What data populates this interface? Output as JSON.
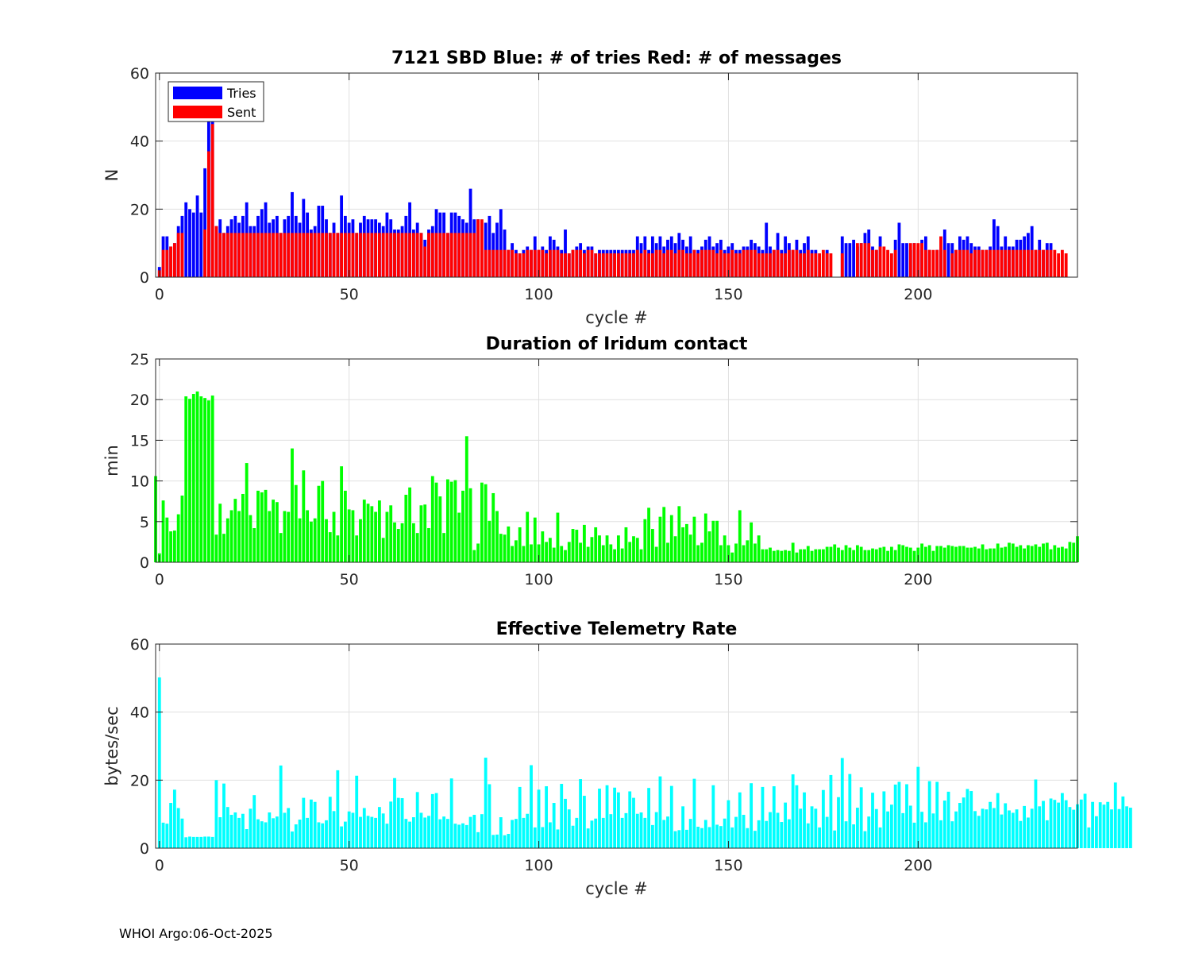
{
  "footer": {
    "text": "WHOI Argo:06-Oct-2025"
  },
  "chart_data": [
    {
      "type": "bar",
      "title": "7121 SBD  Blue: # of tries   Red: # of messages",
      "xlabel": "cycle #",
      "ylabel": "N",
      "xlim": [
        -1,
        242
      ],
      "ylim": [
        0,
        60
      ],
      "xticks": [
        0,
        50,
        100,
        150,
        200
      ],
      "yticks": [
        0,
        20,
        40,
        60
      ],
      "grid": true,
      "legend": {
        "position": "top-left",
        "entries": [
          {
            "label": "Tries",
            "color": "#0000ff"
          },
          {
            "label": "Sent",
            "color": "#ff0000"
          }
        ]
      },
      "x_start": 0,
      "series": [
        {
          "name": "Tries",
          "color": "#0000ff",
          "values": [
            3,
            12,
            12,
            9,
            10,
            15,
            18,
            22,
            20,
            19,
            24,
            19,
            32,
            50,
            49,
            15,
            17,
            13,
            15,
            17,
            18,
            16,
            18,
            22,
            15,
            15,
            18,
            20,
            22,
            16,
            17,
            18,
            13,
            17,
            18,
            25,
            18,
            16,
            23,
            19,
            14,
            15,
            21,
            21,
            17,
            13,
            16,
            13,
            24,
            18,
            16,
            17,
            13,
            16,
            18,
            17,
            17,
            17,
            16,
            15,
            19,
            17,
            14,
            14,
            15,
            18,
            22,
            14,
            16,
            13,
            11,
            14,
            15,
            20,
            19,
            19,
            13,
            19,
            19,
            18,
            17,
            16,
            26,
            17,
            17,
            0,
            16,
            18,
            13,
            16,
            20,
            14,
            8,
            10,
            8,
            7,
            8,
            9,
            8,
            12,
            8,
            9,
            8,
            12,
            11,
            9,
            8,
            14,
            7,
            8,
            9,
            10,
            8,
            9,
            9,
            7,
            8,
            8,
            8,
            8,
            8,
            8,
            8,
            8,
            8,
            8,
            12,
            10,
            12,
            8,
            12,
            10,
            12,
            9,
            11,
            12,
            10,
            13,
            11,
            9,
            12,
            8,
            8,
            9,
            11,
            12,
            9,
            10,
            11,
            8,
            9,
            10,
            8,
            8,
            9,
            9,
            11,
            10,
            9,
            8,
            16,
            9,
            8,
            13,
            8,
            12,
            10,
            8,
            11,
            8,
            10,
            12,
            8,
            8,
            0,
            0,
            8,
            0,
            0,
            0,
            12,
            10,
            10,
            11,
            9,
            10,
            13,
            14,
            9,
            8,
            12,
            0,
            0,
            0,
            11,
            16,
            10,
            10,
            8,
            10,
            8,
            11,
            12,
            8,
            0,
            8,
            8,
            14,
            10,
            10,
            8,
            12,
            11,
            12,
            10,
            9,
            9,
            8,
            8,
            9,
            17,
            15,
            9,
            12,
            9,
            9,
            11,
            11,
            12,
            13,
            15,
            8,
            11,
            8,
            10,
            10
          ]
        },
        {
          "name": "Sent",
          "color": "#ff0000",
          "values": [
            2,
            8,
            8,
            9,
            10,
            13,
            13,
            0,
            0,
            0,
            0,
            0,
            14,
            37,
            45,
            15,
            13,
            13,
            13,
            13,
            13,
            13,
            13,
            13,
            13,
            13,
            13,
            13,
            13,
            13,
            13,
            13,
            13,
            13,
            13,
            13,
            13,
            13,
            13,
            13,
            13,
            13,
            13,
            13,
            13,
            13,
            13,
            13,
            13,
            13,
            13,
            13,
            13,
            13,
            13,
            13,
            13,
            13,
            13,
            13,
            13,
            13,
            13,
            13,
            13,
            13,
            13,
            13,
            13,
            13,
            9,
            13,
            13,
            13,
            13,
            13,
            13,
            13,
            13,
            13,
            13,
            13,
            13,
            13,
            17,
            17,
            8,
            8,
            8,
            8,
            8,
            8,
            8,
            8,
            7,
            7,
            7,
            8,
            8,
            8,
            8,
            8,
            7,
            8,
            8,
            8,
            7,
            7,
            7,
            8,
            8,
            8,
            7,
            8,
            8,
            7,
            7,
            7,
            7,
            7,
            7,
            7,
            7,
            7,
            7,
            7,
            8,
            7,
            8,
            7,
            7,
            8,
            8,
            7,
            8,
            8,
            7,
            8,
            8,
            7,
            7,
            8,
            7,
            8,
            8,
            8,
            8,
            7,
            8,
            7,
            7,
            8,
            7,
            7,
            8,
            8,
            8,
            8,
            7,
            7,
            7,
            7,
            8,
            8,
            7,
            7,
            8,
            8,
            8,
            7,
            7,
            8,
            7,
            7,
            7,
            8,
            7,
            7,
            0,
            0,
            7,
            0,
            0,
            0,
            10,
            10,
            10,
            10,
            8,
            8,
            9,
            9,
            8,
            7,
            8,
            0,
            0,
            0,
            10,
            10,
            10,
            10,
            8,
            8,
            8,
            8,
            12,
            8,
            0,
            7,
            8,
            8,
            8,
            8,
            7,
            8,
            8,
            8,
            8,
            8,
            8,
            8,
            8,
            8,
            8,
            8,
            8,
            8,
            8,
            8,
            8,
            8,
            8,
            8,
            8,
            8,
            8,
            7,
            8,
            7
          ]
        }
      ]
    },
    {
      "type": "bar",
      "title": "Duration of Iridum contact",
      "xlabel": "",
      "ylabel": "min",
      "xlim": [
        -1,
        242
      ],
      "ylim": [
        0,
        25
      ],
      "xticks": [
        0,
        50,
        100,
        150,
        200
      ],
      "yticks": [
        0,
        5,
        10,
        15,
        20,
        25
      ],
      "grid": true,
      "x_start": -1,
      "series": [
        {
          "name": "Duration",
          "color": "#00ff00",
          "values": [
            10.6,
            1.1,
            7.6,
            5.5,
            3.8,
            3.9,
            5.9,
            8.2,
            20.4,
            20.1,
            20.7,
            21.0,
            20.4,
            20.2,
            19.9,
            20.5,
            3.4,
            7.2,
            3.5,
            5.4,
            6.4,
            7.8,
            6.3,
            8.4,
            12.2,
            5.8,
            4.2,
            8.8,
            8.6,
            8.9,
            6.3,
            7.7,
            7.4,
            3.6,
            6.3,
            6.2,
            14.0,
            9.5,
            5.4,
            11.3,
            6.4,
            5.0,
            5.4,
            9.4,
            10.0,
            5.3,
            3.7,
            6.2,
            3.3,
            11.8,
            8.8,
            6.5,
            6.4,
            3.3,
            5.3,
            7.7,
            7.2,
            6.9,
            6.2,
            7.6,
            3.0,
            6.2,
            7.0,
            4.9,
            4.1,
            4.8,
            8.3,
            9.2,
            4.8,
            3.6,
            7.0,
            7.1,
            4.2,
            10.6,
            9.8,
            8.1,
            3.6,
            10.2,
            9.9,
            10.1,
            6.1,
            8.8,
            15.5,
            9.1,
            1.5,
            2.3,
            9.8,
            9.6,
            5.1,
            8.5,
            6.3,
            3.5,
            3.4,
            4.4,
            2.0,
            2.7,
            4.3,
            2.0,
            6.2,
            2.2,
            5.5,
            2.2,
            3.8,
            2.5,
            3.0,
            1.8,
            6.1,
            2.0,
            1.5,
            2.5,
            4.1,
            4.0,
            2.4,
            4.6,
            1.9,
            3.1,
            4.3,
            3.3,
            2.1,
            3.3,
            2.2,
            1.6,
            3.3,
            1.7,
            4.3,
            2.5,
            3.2,
            3.0,
            1.6,
            5.3,
            6.7,
            4.1,
            1.9,
            5.6,
            6.8,
            2.4,
            5.8,
            3.2,
            6.9,
            4.3,
            4.7,
            3.4,
            5.6,
            2.1,
            2.4,
            6.0,
            3.8,
            5.1,
            5.1,
            2.1,
            3.3,
            2.1,
            1.2,
            2.3,
            6.4,
            2.1,
            2.7,
            4.9,
            2.3,
            3.3,
            1.6,
            1.6,
            1.8,
            1.4,
            1.5,
            1.4,
            1.5,
            1.4,
            2.4,
            1.2,
            1.6,
            1.6,
            2.0,
            1.4,
            1.6,
            1.6,
            1.6,
            1.9,
            1.9,
            2.2,
            1.8,
            1.5,
            2.1,
            1.8,
            1.5,
            2.1,
            1.9,
            1.5,
            1.5,
            1.7,
            1.6,
            1.8,
            1.9,
            1.4,
            1.9,
            1.5,
            2.2,
            2.1,
            1.9,
            1.8,
            1.4,
            1.8,
            2.3,
            1.9,
            2.1,
            1.4,
            2.0,
            2.0,
            1.8,
            2.1,
            2.0,
            1.9,
            2.0,
            2.0,
            1.8,
            1.8,
            1.9,
            1.7,
            2.2,
            1.6,
            1.7,
            1.7,
            2.3,
            1.8,
            1.9,
            2.4,
            2.3,
            1.9,
            2.1,
            1.7,
            2.1,
            2.0,
            2.2,
            1.9,
            2.3,
            2.4,
            1.6,
            2.1,
            1.8,
            1.9,
            1.7,
            2.5,
            2.4,
            3.2
          ]
        }
      ]
    },
    {
      "type": "bar",
      "title": "Effective Telemetry Rate",
      "xlabel": "cycle #",
      "ylabel": "bytes/sec",
      "xlim": [
        -1,
        242
      ],
      "ylim": [
        0,
        60
      ],
      "xticks": [
        0,
        50,
        100,
        150,
        200
      ],
      "yticks": [
        0,
        20,
        40,
        60
      ],
      "grid": true,
      "x_start": 0,
      "series": [
        {
          "name": "Rate",
          "color": "#00ffff",
          "values": [
            50.2,
            7.5,
            7.2,
            13.3,
            17.2,
            11.8,
            8.7,
            3.2,
            3.4,
            3.3,
            3.3,
            3.3,
            3.4,
            3.4,
            3.3,
            20.0,
            9.1,
            19.0,
            12.1,
            9.8,
            10.5,
            8.9,
            10.1,
            5.6,
            11.6,
            15.6,
            8.5,
            7.9,
            7.6,
            10.5,
            8.8,
            9.3,
            24.3,
            10.4,
            11.8,
            4.9,
            7.0,
            8.4,
            14.8,
            8.9,
            14.3,
            13.6,
            7.6,
            7.3,
            8.2,
            15.1,
            10.9,
            22.9,
            6.4,
            7.8,
            10.8,
            10.4,
            21.3,
            9.2,
            11.8,
            9.5,
            9.2,
            8.9,
            12.1,
            10.2,
            7.2,
            13.7,
            20.6,
            14.8,
            14.7,
            8.6,
            7.8,
            9.1,
            16.5,
            10.4,
            9.0,
            9.5,
            15.9,
            16.2,
            8.5,
            9.3,
            8.6,
            20.5,
            7.2,
            6.9,
            7.3,
            6.8,
            9.2,
            9.8,
            4.7,
            10.0,
            26.6,
            18.8,
            3.9,
            4.0,
            9.1,
            3.8,
            4.2,
            8.3,
            8.6,
            18.0,
            8.9,
            10.1,
            24.4,
            6.1,
            17.2,
            6.2,
            18.2,
            7.6,
            13.3,
            5.5,
            18.9,
            14.5,
            11.4,
            6.6,
            8.9,
            20.3,
            15.4,
            5.8,
            8.1,
            8.7,
            17.5,
            8.9,
            18.5,
            10.0,
            17.8,
            16.4,
            8.9,
            10.3,
            16.7,
            14.8,
            10.1,
            10.5,
            8.9,
            17.7,
            6.8,
            10.6,
            21.1,
            8.3,
            9.3,
            18.3,
            5.0,
            5.3,
            12.3,
            5.4,
            8.6,
            20.4,
            6.3,
            5.9,
            8.3,
            6.2,
            18.5,
            6.9,
            6.5,
            8.7,
            14.1,
            6.1,
            9.2,
            16.4,
            9.8,
            5.9,
            19.1,
            5.1,
            8.2,
            18.0,
            8.0,
            10.6,
            18.2,
            10.4,
            7.7,
            13.4,
            8.5,
            21.7,
            18.5,
            11.6,
            16.4,
            7.3,
            12.3,
            11.6,
            6.1,
            17.1,
            9.2,
            21.5,
            5.2,
            15.0,
            26.5,
            7.9,
            21.8,
            7.0,
            11.9,
            17.9,
            5.0,
            9.3,
            16.3,
            11.5,
            6.1,
            16.7,
            10.8,
            12.8,
            18.7,
            19.5,
            10.3,
            18.8,
            12.5,
            7.5,
            23.9,
            10.7,
            7.6,
            19.7,
            10.2,
            19.5,
            8.2,
            14.0,
            16.6,
            7.9,
            10.8,
            13.3,
            14.9,
            17.4,
            16.8,
            10.9,
            9.5,
            11.6,
            11.4,
            13.6,
            11.8,
            16.2,
            9.9,
            13.2,
            11.1,
            10.4,
            11.4,
            8.0,
            12.4,
            9.0,
            11.6,
            20.2,
            12.3,
            13.9,
            8.2,
            14.6,
            14.2,
            13.4,
            16.2,
            14.1,
            12.1,
            11.3,
            12.9,
            14.3,
            16.0,
            6.1,
            13.6,
            9.4,
            13.5,
            12.8,
            13.6,
            11.4,
            19.3,
            11.5,
            15.2,
            12.3,
            11.9
          ]
        }
      ]
    }
  ]
}
